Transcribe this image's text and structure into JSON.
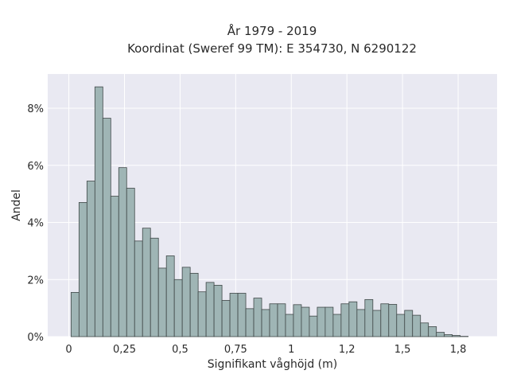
{
  "chart_data": {
    "type": "bar",
    "title_lines": [
      "År 1979 - 2019",
      "Koordinat (Sweref 99 TM): E 354730, N 6290122"
    ],
    "xlabel": "Signifikant våghöjd (m)",
    "ylabel": "Andel",
    "xlim": [
      -0.095,
      1.925
    ],
    "ylim": [
      0,
      0.092
    ],
    "x_ticks": [
      {
        "value": 0,
        "label": "0"
      },
      {
        "value": 0.25,
        "label": "0,25"
      },
      {
        "value": 0.5,
        "label": "0,5"
      },
      {
        "value": 0.75,
        "label": "0,75"
      },
      {
        "value": 1,
        "label": "1"
      },
      {
        "value": 1.25,
        "label": "1,2"
      },
      {
        "value": 1.5,
        "label": "1,5"
      },
      {
        "value": 1.75,
        "label": "1,8"
      }
    ],
    "y_ticks": [
      {
        "value": 0,
        "label": "0%"
      },
      {
        "value": 0.02,
        "label": "2%"
      },
      {
        "value": 0.04,
        "label": "4%"
      },
      {
        "value": 0.06,
        "label": "6%"
      },
      {
        "value": 0.08,
        "label": "8%"
      }
    ],
    "bin_start": 0.01,
    "bin_width": 0.0357,
    "values": [
      0.0155,
      0.047,
      0.0545,
      0.0875,
      0.0765,
      0.0492,
      0.0592,
      0.052,
      0.0335,
      0.038,
      0.0345,
      0.024,
      0.0283,
      0.02,
      0.0243,
      0.0222,
      0.0157,
      0.019,
      0.018,
      0.0127,
      0.0152,
      0.0152,
      0.0098,
      0.0135,
      0.0095,
      0.0115,
      0.0115,
      0.0078,
      0.0112,
      0.0103,
      0.0072,
      0.0103,
      0.0103,
      0.0078,
      0.0115,
      0.0122,
      0.0095,
      0.013,
      0.0092,
      0.0115,
      0.0113,
      0.0078,
      0.0092,
      0.0075,
      0.0048,
      0.0035,
      0.0015,
      0.0007,
      0.0004,
      0.0001
    ],
    "colors": {
      "plot_bg": "#e9e9f2",
      "grid": "#ffffff",
      "bar_fill": "#9fb5b5",
      "bar_edge": "#404848",
      "text": "#2a2a2a"
    },
    "grid": true
  }
}
